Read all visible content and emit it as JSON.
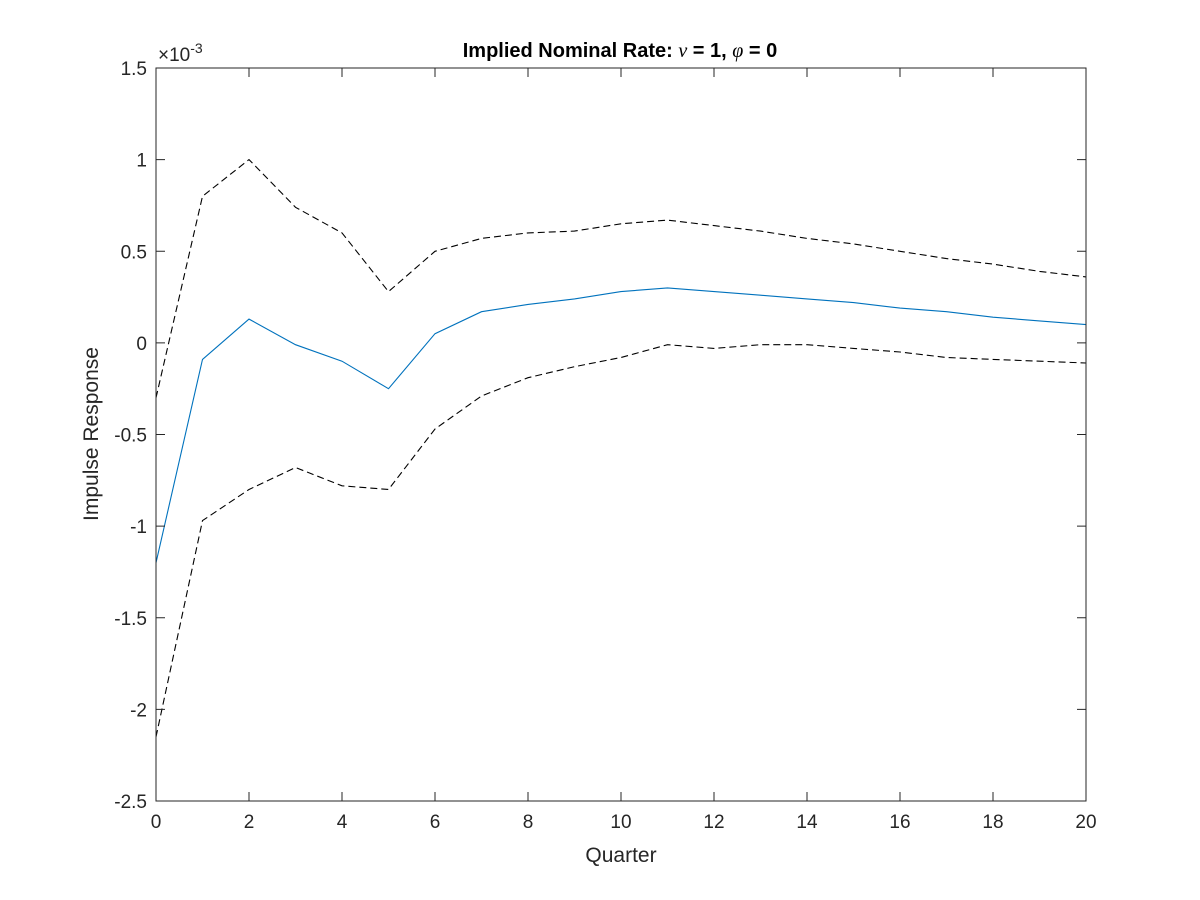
{
  "chart_data": {
    "type": "line",
    "title": {
      "prefix": "Implied Nominal Rate: ",
      "sym1": "ν",
      "mid": " = 1, ",
      "sym2": "φ",
      "suffix": " = 0"
    },
    "xlabel": "Quarter",
    "ylabel": "Impulse Response",
    "y_exponent_label": "×10",
    "y_exponent_power": "-3",
    "xlim": [
      0,
      20
    ],
    "ylim": [
      -2.5,
      1.5
    ],
    "x_ticks": [
      0,
      2,
      4,
      6,
      8,
      10,
      12,
      14,
      16,
      18,
      20
    ],
    "x_tick_labels": [
      "0",
      "2",
      "4",
      "6",
      "8",
      "10",
      "12",
      "14",
      "16",
      "18",
      "20"
    ],
    "y_ticks": [
      -2.5,
      -2,
      -1.5,
      -1,
      -0.5,
      0,
      0.5,
      1,
      1.5
    ],
    "y_tick_labels": [
      "-2.5",
      "-2",
      "-1.5",
      "-1",
      "-0.5",
      "0",
      "0.5",
      "1",
      "1.5"
    ],
    "grid": false,
    "x": [
      0,
      1,
      2,
      3,
      4,
      5,
      6,
      7,
      8,
      9,
      10,
      11,
      12,
      13,
      14,
      15,
      16,
      17,
      18,
      19,
      20
    ],
    "series": [
      {
        "color": "#0072BD",
        "dash": "solid",
        "values": [
          -1.2,
          -0.09,
          0.13,
          -0.01,
          -0.1,
          -0.25,
          0.05,
          0.17,
          0.21,
          0.24,
          0.28,
          0.3,
          0.28,
          0.26,
          0.24,
          0.22,
          0.19,
          0.17,
          0.14,
          0.12,
          0.1
        ]
      },
      {
        "color": "#000000",
        "dash": "dashed",
        "values": [
          -0.3,
          0.8,
          1.0,
          0.74,
          0.6,
          0.28,
          0.5,
          0.57,
          0.6,
          0.61,
          0.65,
          0.67,
          0.64,
          0.61,
          0.57,
          0.54,
          0.5,
          0.46,
          0.43,
          0.39,
          0.36
        ]
      },
      {
        "color": "#000000",
        "dash": "dashed",
        "values": [
          -2.15,
          -0.97,
          -0.8,
          -0.68,
          -0.78,
          -0.8,
          -0.47,
          -0.29,
          -0.19,
          -0.13,
          -0.08,
          -0.01,
          -0.03,
          -0.01,
          -0.01,
          -0.03,
          -0.05,
          -0.08,
          -0.09,
          -0.1,
          -0.11
        ]
      }
    ]
  }
}
